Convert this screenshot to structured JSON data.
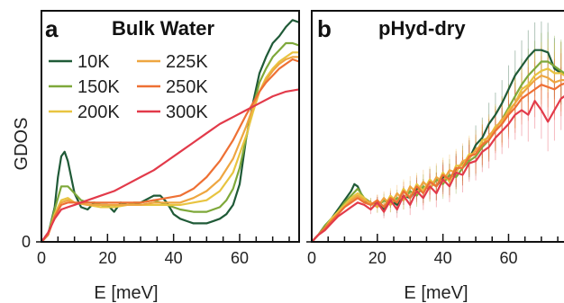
{
  "colors": {
    "10K": "#1f5a37",
    "150K": "#7ea83a",
    "200K": "#e8c440",
    "225K": "#eea640",
    "250K": "#ee7034",
    "300K": "#e23a4a"
  },
  "chart_data": [
    {
      "type": "line",
      "panel": "a",
      "title": "Bulk Water",
      "xlabel": "E [meV]",
      "ylabel": "GDOS",
      "xlim": [
        0,
        78
      ],
      "ylim": [
        0,
        1
      ],
      "xticks": [
        0,
        20,
        40,
        60
      ],
      "yticks": [
        0
      ],
      "legend": "top-left",
      "series": [
        {
          "name": "10K",
          "x": [
            0,
            2,
            4,
            5,
            6,
            7,
            8,
            10,
            12,
            14,
            16,
            18,
            20,
            22,
            24,
            26,
            28,
            30,
            34,
            36,
            38,
            40,
            42,
            44,
            46,
            48,
            50,
            52,
            54,
            56,
            58,
            60,
            62,
            64,
            66,
            68,
            70,
            72,
            74,
            76,
            78
          ],
          "y": [
            0,
            0.03,
            0.15,
            0.28,
            0.37,
            0.39,
            0.35,
            0.21,
            0.15,
            0.14,
            0.17,
            0.16,
            0.16,
            0.13,
            0.17,
            0.16,
            0.16,
            0.17,
            0.2,
            0.2,
            0.17,
            0.12,
            0.1,
            0.09,
            0.08,
            0.08,
            0.08,
            0.09,
            0.1,
            0.12,
            0.16,
            0.25,
            0.45,
            0.6,
            0.73,
            0.8,
            0.86,
            0.89,
            0.93,
            0.96,
            0.95
          ]
        },
        {
          "name": "150K",
          "x": [
            0,
            2,
            4,
            6,
            8,
            10,
            12,
            14,
            16,
            18,
            20,
            22,
            24,
            26,
            28,
            30,
            34,
            38,
            42,
            46,
            50,
            54,
            56,
            58,
            60,
            62,
            64,
            66,
            68,
            70,
            72,
            74,
            76,
            78
          ],
          "y": [
            0,
            0.03,
            0.14,
            0.24,
            0.24,
            0.21,
            0.18,
            0.17,
            0.17,
            0.16,
            0.15,
            0.15,
            0.16,
            0.16,
            0.17,
            0.17,
            0.18,
            0.16,
            0.14,
            0.13,
            0.13,
            0.15,
            0.18,
            0.23,
            0.32,
            0.45,
            0.58,
            0.69,
            0.75,
            0.8,
            0.83,
            0.86,
            0.86,
            0.85
          ]
        },
        {
          "name": "200K",
          "x": [
            0,
            2,
            4,
            6,
            8,
            10,
            14,
            18,
            22,
            26,
            30,
            34,
            38,
            42,
            46,
            50,
            54,
            58,
            60,
            62,
            64,
            66,
            68,
            70,
            72,
            74,
            76,
            78
          ],
          "y": [
            0,
            0.03,
            0.12,
            0.18,
            0.19,
            0.17,
            0.16,
            0.15,
            0.15,
            0.16,
            0.16,
            0.16,
            0.16,
            0.16,
            0.17,
            0.18,
            0.22,
            0.3,
            0.38,
            0.46,
            0.56,
            0.65,
            0.71,
            0.75,
            0.78,
            0.8,
            0.82,
            0.82
          ]
        },
        {
          "name": "225K",
          "x": [
            0,
            2,
            4,
            6,
            8,
            10,
            14,
            18,
            22,
            26,
            30,
            34,
            38,
            42,
            46,
            50,
            54,
            58,
            62,
            64,
            66,
            68,
            70,
            72,
            74,
            76,
            78
          ],
          "y": [
            0,
            0.03,
            0.11,
            0.17,
            0.18,
            0.17,
            0.16,
            0.16,
            0.16,
            0.16,
            0.16,
            0.17,
            0.17,
            0.17,
            0.19,
            0.22,
            0.27,
            0.36,
            0.5,
            0.58,
            0.65,
            0.7,
            0.74,
            0.77,
            0.79,
            0.8,
            0.8
          ]
        },
        {
          "name": "250K",
          "x": [
            0,
            2,
            4,
            6,
            8,
            10,
            14,
            18,
            22,
            26,
            30,
            34,
            38,
            42,
            46,
            50,
            54,
            58,
            62,
            64,
            66,
            68,
            70,
            72,
            74,
            76,
            78
          ],
          "y": [
            0,
            0.03,
            0.11,
            0.16,
            0.17,
            0.17,
            0.17,
            0.17,
            0.17,
            0.17,
            0.17,
            0.18,
            0.19,
            0.2,
            0.23,
            0.28,
            0.35,
            0.44,
            0.55,
            0.6,
            0.65,
            0.69,
            0.72,
            0.75,
            0.77,
            0.79,
            0.78
          ]
        },
        {
          "name": "300K",
          "x": [
            0,
            2,
            4,
            6,
            8,
            10,
            14,
            18,
            22,
            26,
            30,
            34,
            38,
            42,
            46,
            50,
            54,
            58,
            62,
            66,
            70,
            74,
            78
          ],
          "y": [
            0,
            0.04,
            0.1,
            0.14,
            0.15,
            0.16,
            0.18,
            0.2,
            0.22,
            0.25,
            0.28,
            0.31,
            0.35,
            0.39,
            0.43,
            0.47,
            0.51,
            0.54,
            0.57,
            0.6,
            0.63,
            0.65,
            0.66
          ]
        }
      ]
    },
    {
      "type": "line",
      "panel": "b",
      "title": "pHyd-dry",
      "xlabel": "E [meV]",
      "xlim": [
        0,
        78
      ],
      "ylim": [
        0,
        1
      ],
      "xticks": [
        0,
        20,
        40,
        60
      ],
      "error_bars": true,
      "series": [
        {
          "name": "10K",
          "x": [
            0,
            2,
            4,
            6,
            8,
            10,
            12,
            13,
            14,
            16,
            18,
            20,
            22,
            24,
            26,
            28,
            30,
            32,
            34,
            36,
            38,
            40,
            42,
            44,
            46,
            48,
            50,
            52,
            54,
            56,
            58,
            60,
            62,
            64,
            66,
            68,
            70,
            72,
            74,
            76,
            78
          ],
          "y": [
            0,
            0.03,
            0.07,
            0.1,
            0.14,
            0.18,
            0.22,
            0.25,
            0.24,
            0.18,
            0.16,
            0.17,
            0.14,
            0.18,
            0.16,
            0.2,
            0.19,
            0.23,
            0.22,
            0.26,
            0.24,
            0.28,
            0.27,
            0.31,
            0.34,
            0.36,
            0.42,
            0.45,
            0.51,
            0.55,
            0.6,
            0.66,
            0.72,
            0.76,
            0.8,
            0.83,
            0.83,
            0.82,
            0.75,
            0.73,
            0.72
          ]
        },
        {
          "name": "150K",
          "x": [
            0,
            2,
            4,
            6,
            8,
            10,
            12,
            14,
            16,
            18,
            20,
            22,
            24,
            26,
            28,
            30,
            32,
            34,
            36,
            38,
            40,
            42,
            44,
            46,
            48,
            50,
            52,
            54,
            56,
            58,
            60,
            62,
            64,
            66,
            68,
            70,
            72,
            74,
            76,
            78
          ],
          "y": [
            0,
            0.03,
            0.07,
            0.1,
            0.13,
            0.17,
            0.2,
            0.23,
            0.19,
            0.17,
            0.15,
            0.18,
            0.16,
            0.19,
            0.18,
            0.22,
            0.2,
            0.24,
            0.23,
            0.27,
            0.25,
            0.29,
            0.28,
            0.32,
            0.35,
            0.37,
            0.41,
            0.44,
            0.49,
            0.53,
            0.58,
            0.63,
            0.68,
            0.72,
            0.75,
            0.78,
            0.78,
            0.76,
            0.74,
            0.72
          ]
        },
        {
          "name": "200K",
          "x": [
            0,
            2,
            4,
            6,
            8,
            10,
            12,
            14,
            16,
            18,
            20,
            22,
            24,
            26,
            28,
            30,
            32,
            34,
            36,
            38,
            40,
            42,
            44,
            46,
            48,
            50,
            52,
            54,
            56,
            58,
            60,
            62,
            64,
            66,
            68,
            70,
            72,
            74,
            76,
            78
          ],
          "y": [
            0,
            0.03,
            0.06,
            0.1,
            0.13,
            0.16,
            0.19,
            0.21,
            0.19,
            0.16,
            0.18,
            0.15,
            0.2,
            0.17,
            0.23,
            0.19,
            0.25,
            0.22,
            0.27,
            0.24,
            0.3,
            0.26,
            0.33,
            0.33,
            0.38,
            0.38,
            0.44,
            0.45,
            0.5,
            0.52,
            0.57,
            0.6,
            0.66,
            0.68,
            0.72,
            0.74,
            0.75,
            0.73,
            0.73,
            0.71
          ]
        },
        {
          "name": "225K",
          "x": [
            0,
            2,
            4,
            6,
            8,
            10,
            12,
            14,
            16,
            18,
            20,
            22,
            24,
            26,
            28,
            30,
            32,
            34,
            36,
            38,
            40,
            42,
            44,
            46,
            48,
            50,
            52,
            54,
            56,
            58,
            60,
            62,
            64,
            66,
            68,
            70,
            72,
            74,
            76,
            78
          ],
          "y": [
            0,
            0.03,
            0.06,
            0.09,
            0.12,
            0.15,
            0.18,
            0.2,
            0.18,
            0.17,
            0.15,
            0.19,
            0.16,
            0.21,
            0.18,
            0.24,
            0.21,
            0.26,
            0.23,
            0.28,
            0.26,
            0.31,
            0.3,
            0.35,
            0.36,
            0.4,
            0.42,
            0.46,
            0.49,
            0.53,
            0.56,
            0.6,
            0.64,
            0.67,
            0.7,
            0.72,
            0.71,
            0.69,
            0.7,
            0.7
          ]
        },
        {
          "name": "250K",
          "x": [
            0,
            2,
            4,
            6,
            8,
            10,
            12,
            14,
            16,
            18,
            20,
            22,
            24,
            26,
            28,
            30,
            32,
            34,
            36,
            38,
            40,
            42,
            44,
            46,
            48,
            50,
            52,
            54,
            56,
            58,
            60,
            62,
            64,
            66,
            68,
            70,
            72,
            74,
            76,
            78
          ],
          "y": [
            0,
            0.03,
            0.06,
            0.09,
            0.12,
            0.15,
            0.17,
            0.19,
            0.17,
            0.16,
            0.18,
            0.15,
            0.19,
            0.17,
            0.22,
            0.19,
            0.24,
            0.21,
            0.26,
            0.24,
            0.29,
            0.27,
            0.32,
            0.32,
            0.37,
            0.38,
            0.42,
            0.44,
            0.48,
            0.51,
            0.55,
            0.58,
            0.62,
            0.64,
            0.66,
            0.68,
            0.67,
            0.66,
            0.68,
            0.69
          ]
        },
        {
          "name": "300K",
          "x": [
            0,
            2,
            4,
            6,
            8,
            10,
            12,
            14,
            16,
            18,
            20,
            22,
            24,
            26,
            28,
            30,
            32,
            34,
            36,
            38,
            40,
            42,
            44,
            46,
            48,
            50,
            52,
            54,
            56,
            58,
            60,
            62,
            64,
            66,
            68,
            70,
            72,
            74,
            76,
            78
          ],
          "y": [
            0,
            0.03,
            0.05,
            0.08,
            0.11,
            0.13,
            0.15,
            0.17,
            0.16,
            0.14,
            0.17,
            0.13,
            0.18,
            0.14,
            0.2,
            0.16,
            0.22,
            0.19,
            0.24,
            0.21,
            0.27,
            0.24,
            0.3,
            0.29,
            0.34,
            0.35,
            0.39,
            0.41,
            0.45,
            0.48,
            0.51,
            0.55,
            0.57,
            0.55,
            0.61,
            0.57,
            0.52,
            0.57,
            0.62,
            0.64
          ]
        }
      ]
    }
  ]
}
